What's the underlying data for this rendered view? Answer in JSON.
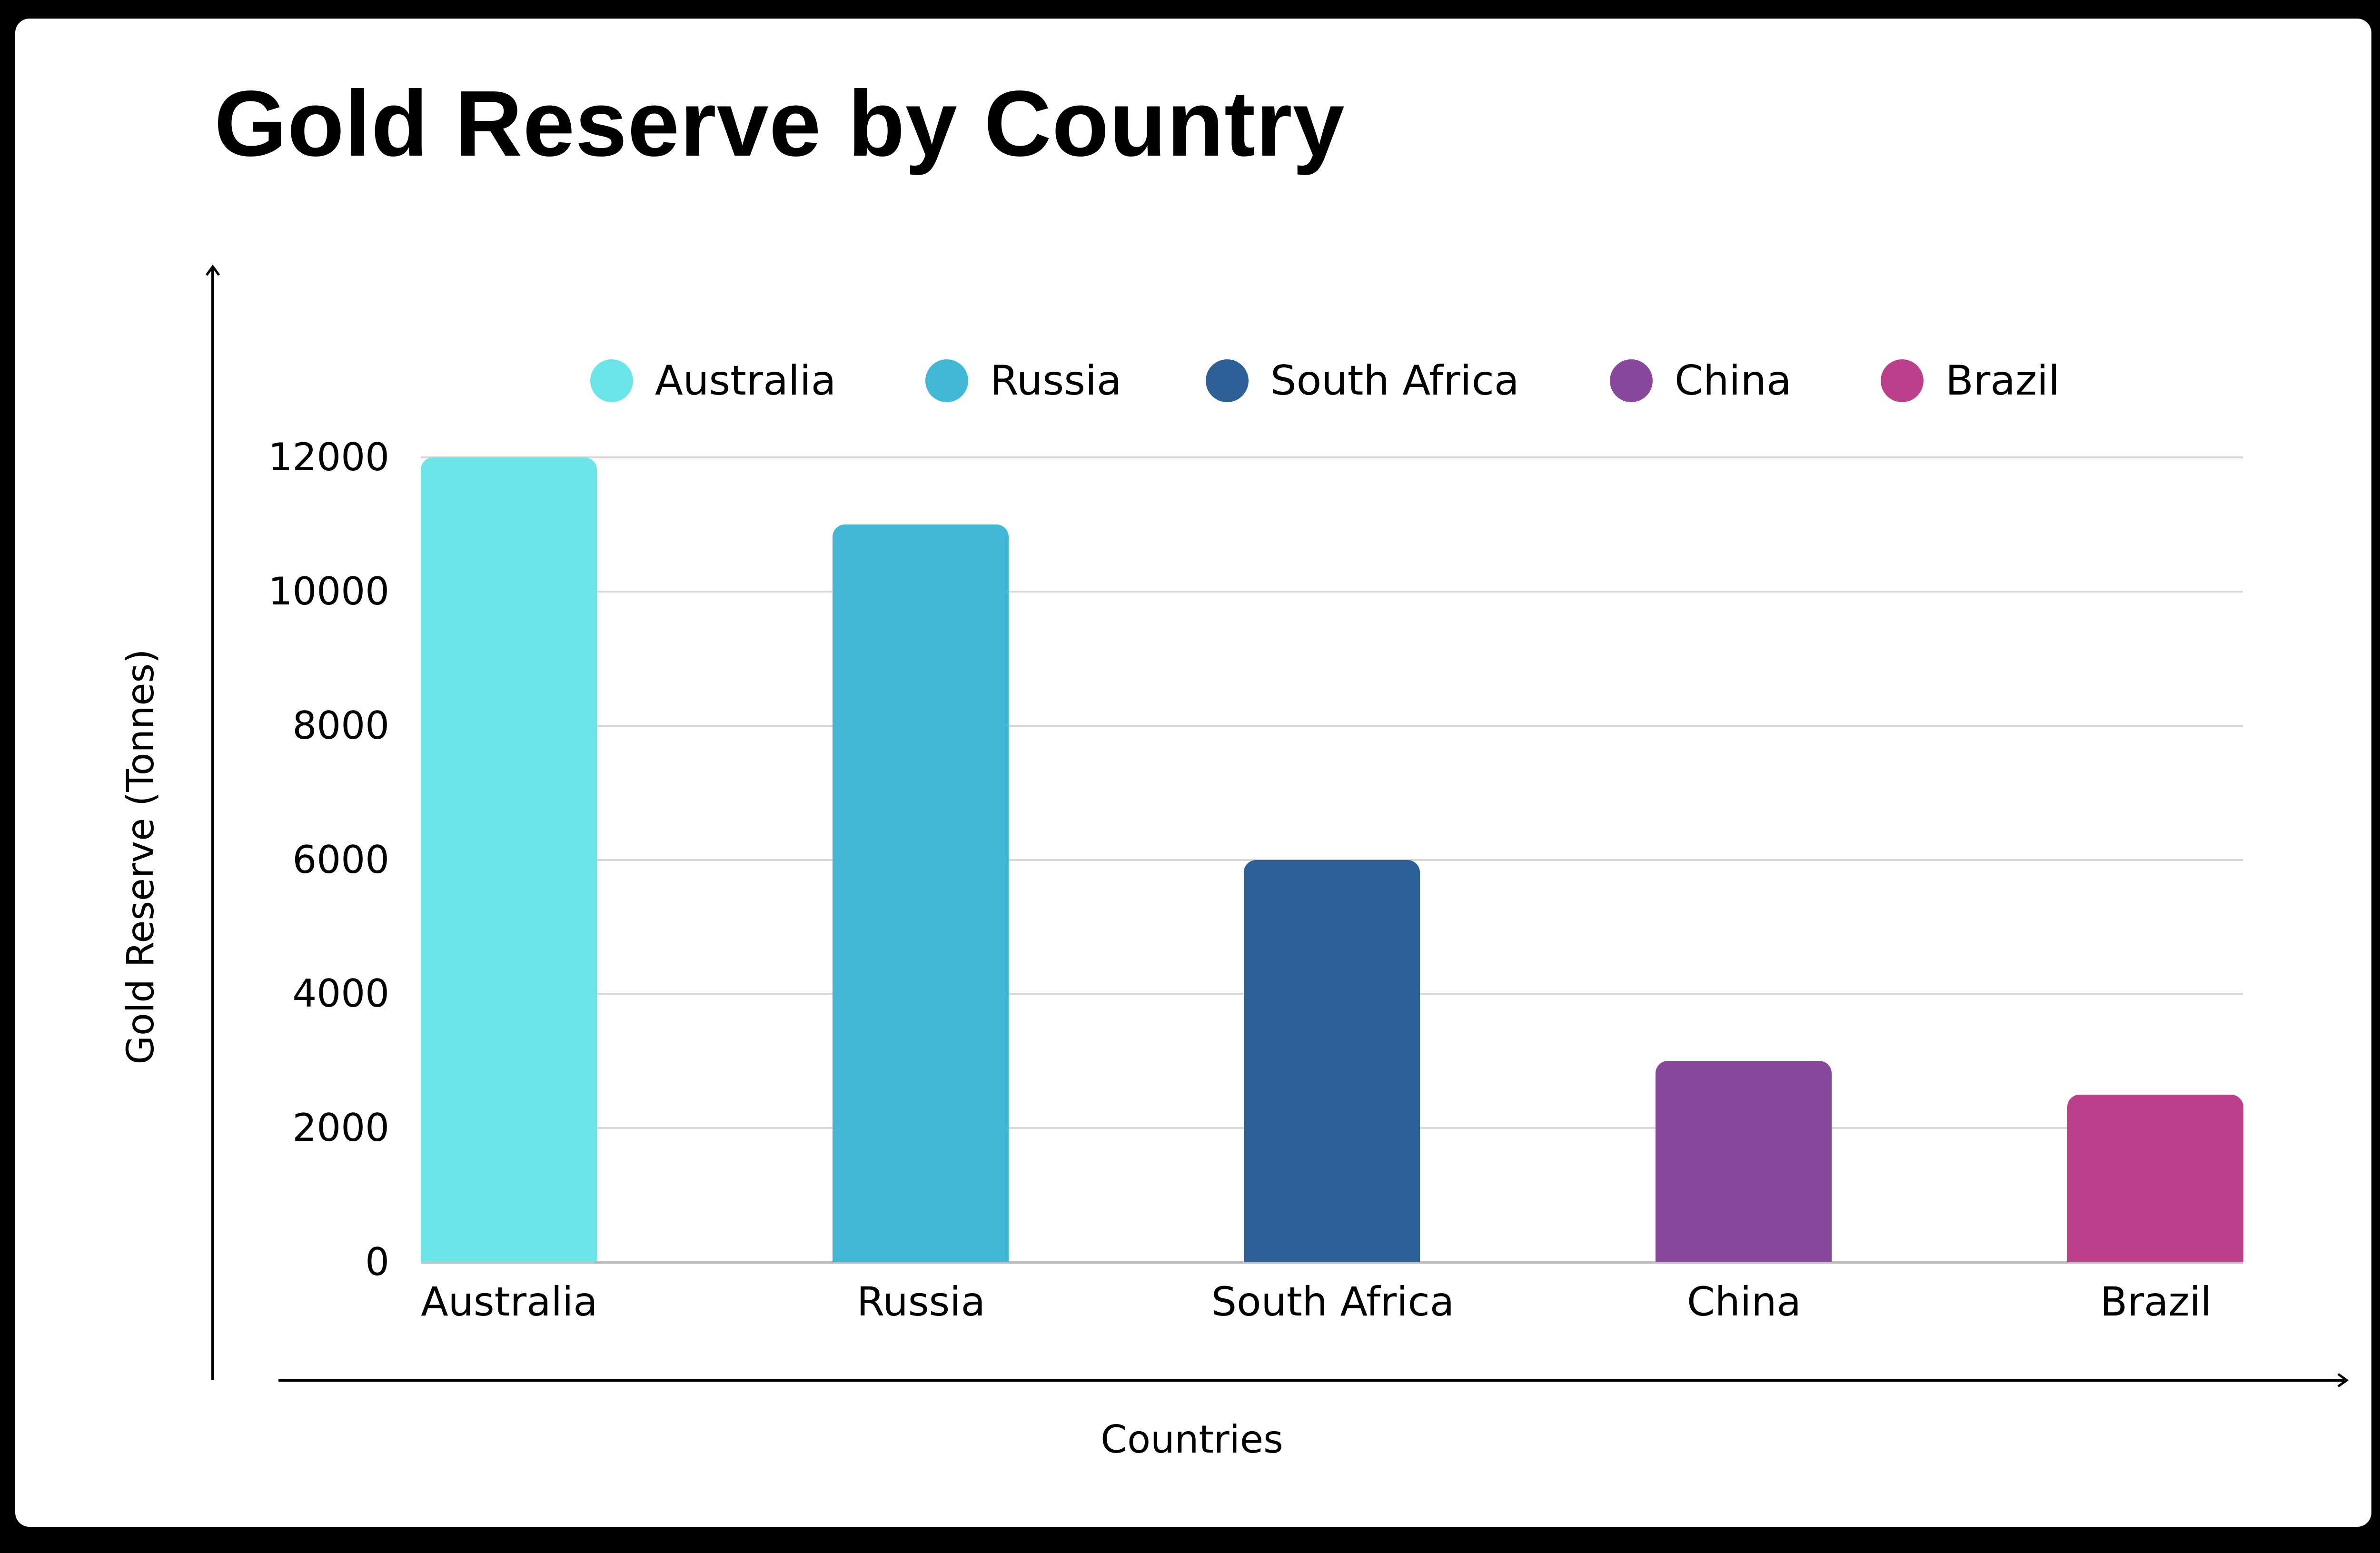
{
  "title": "Gold Reserve by Country",
  "legend": [
    {
      "label": "Australia",
      "color": "#6ce5e8"
    },
    {
      "label": "Russia",
      "color": "#41b8d5"
    },
    {
      "label": "South Africa",
      "color": "#2d6097"
    },
    {
      "label": "China",
      "color": "#88489c"
    },
    {
      "label": "Brazil",
      "color": "#bc3f8c"
    }
  ],
  "y_ticks": [
    "0",
    "2000",
    "4000",
    "6000",
    "8000",
    "10000",
    "12000"
  ],
  "x_labels": [
    "Australia",
    "Russia",
    "South Africa",
    "China",
    "Brazil"
  ],
  "xlabel": "Countries",
  "ylabel": "Gold Reserve (Tonnes)",
  "chart_data": {
    "type": "bar",
    "title": "Gold Reserve by Country",
    "categories": [
      "Australia",
      "Russia",
      "South Africa",
      "China",
      "Brazil"
    ],
    "values": [
      12000,
      11000,
      6000,
      3000,
      2500
    ],
    "colors": [
      "#6ce5e8",
      "#41b8d5",
      "#2d6097",
      "#88489c",
      "#bc3f8c"
    ],
    "xlabel": "Countries",
    "ylabel": "Gold Reserve (Tonnes)",
    "ylim": [
      0,
      12000
    ],
    "y_ticks": [
      0,
      2000,
      4000,
      6000,
      8000,
      10000,
      12000
    ],
    "grid": true,
    "legend_position": "top",
    "legend": [
      "Australia",
      "Russia",
      "South Africa",
      "China",
      "Brazil"
    ]
  }
}
